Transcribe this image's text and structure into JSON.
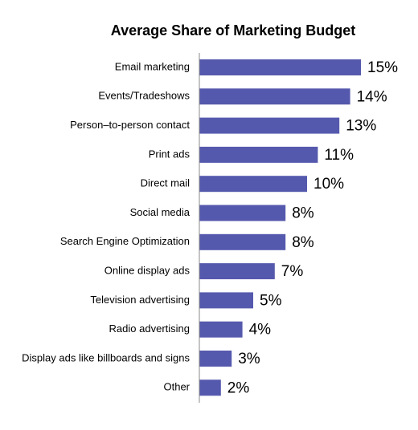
{
  "chart_data": {
    "type": "bar",
    "orientation": "horizontal",
    "title": "Average Share of Marketing Budget",
    "xlabel": "",
    "ylabel": "",
    "categories": [
      "Email marketing",
      "Events/Tradeshows",
      "Person–to-person contact",
      "Print ads",
      "Direct mail",
      "Social media",
      "Search Engine Optimization",
      "Online display ads",
      "Television advertising",
      "Radio advertising",
      "Display ads like billboards and signs",
      "Other"
    ],
    "values": [
      15,
      14,
      13,
      11,
      10,
      8,
      8,
      7,
      5,
      4,
      3,
      2
    ],
    "value_labels": [
      "15%",
      "14%",
      "13%",
      "11%",
      "10%",
      "8%",
      "8%",
      "7%",
      "5%",
      "4%",
      "3%",
      "2%"
    ],
    "xlim": [
      0,
      15
    ],
    "grid": false,
    "legend": "none",
    "bar_color": "#5559ad"
  }
}
